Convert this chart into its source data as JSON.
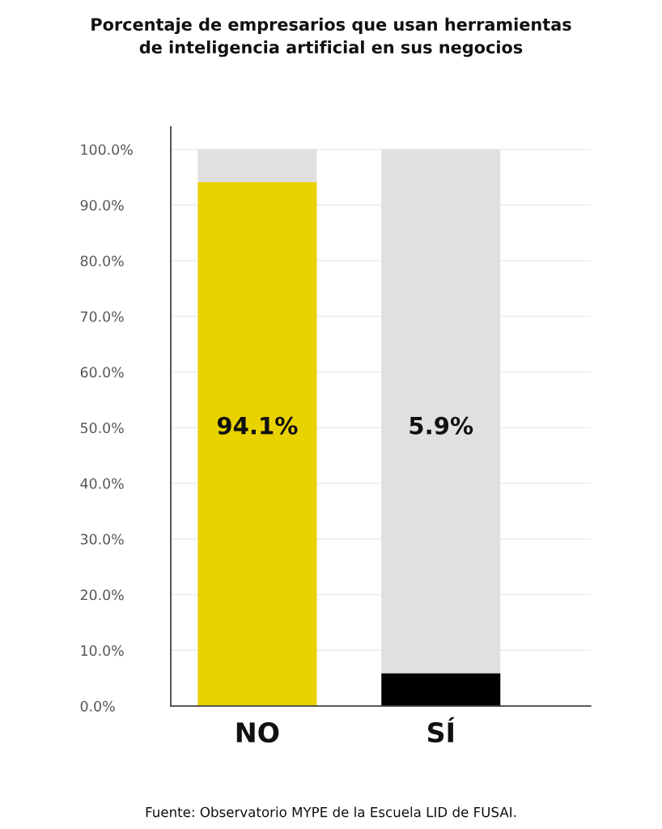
{
  "chart_data": {
    "type": "bar",
    "title": "Porcentaje de empresarios que usan herramientas\nde inteligencia artificial en sus negocios",
    "categories": [
      "NO",
      "SÍ"
    ],
    "stacked": true,
    "series": [
      {
        "colors": [
          "#e8d200",
          "#000000"
        ],
        "values": [
          94.1,
          5.9
        ]
      },
      {
        "color": "#e0e0e0",
        "values": [
          5.9,
          94.1
        ]
      }
    ],
    "ylim": [
      0,
      104
    ],
    "yticks": [
      {
        "value": 0,
        "label": "0.0%"
      },
      {
        "value": 10,
        "label": "10.0%"
      },
      {
        "value": 20,
        "label": "20.0%"
      },
      {
        "value": 30,
        "label": "30.0%"
      },
      {
        "value": 40,
        "label": "40.0%"
      },
      {
        "value": 50,
        "label": "50.0%"
      },
      {
        "value": 60,
        "label": "60.0%"
      },
      {
        "value": 70,
        "label": "70.0%"
      },
      {
        "value": 80,
        "label": "80.0%"
      },
      {
        "value": 90,
        "label": "90.0%"
      },
      {
        "value": 100,
        "label": "100.0%"
      }
    ],
    "grid": "y",
    "annotations": [
      "94.1%",
      "5.9%",
      "Fuente: Observatorio MYPE de la Escuela LID de FUSAI."
    ]
  }
}
